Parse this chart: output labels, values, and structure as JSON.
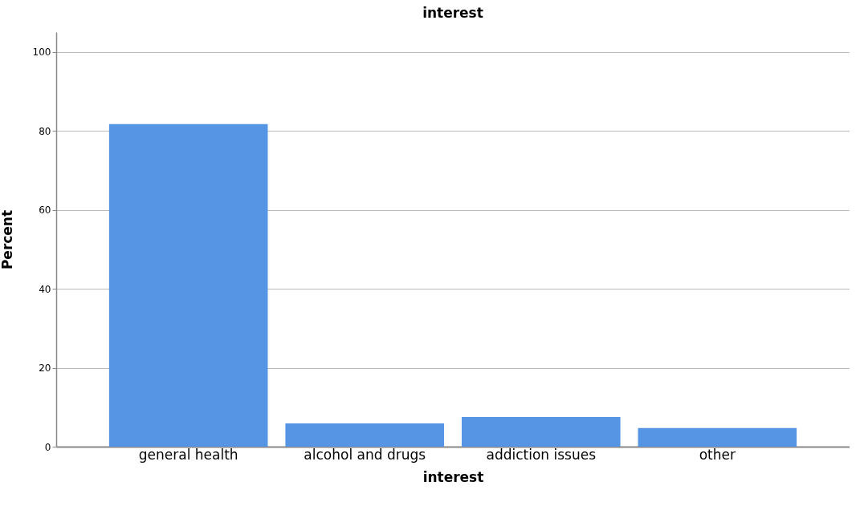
{
  "chart_data": {
    "type": "bar",
    "title": "interest",
    "xlabel": "interest",
    "ylabel": "Percent",
    "categories": [
      "general health",
      "alcohol and drugs",
      "addiction issues",
      "other"
    ],
    "values": [
      81.7,
      5.9,
      7.5,
      4.7
    ],
    "color": "#5595e4",
    "ylim": [
      0,
      105
    ],
    "yticks": [
      0,
      20,
      40,
      60,
      80,
      100
    ],
    "grid": "y"
  }
}
